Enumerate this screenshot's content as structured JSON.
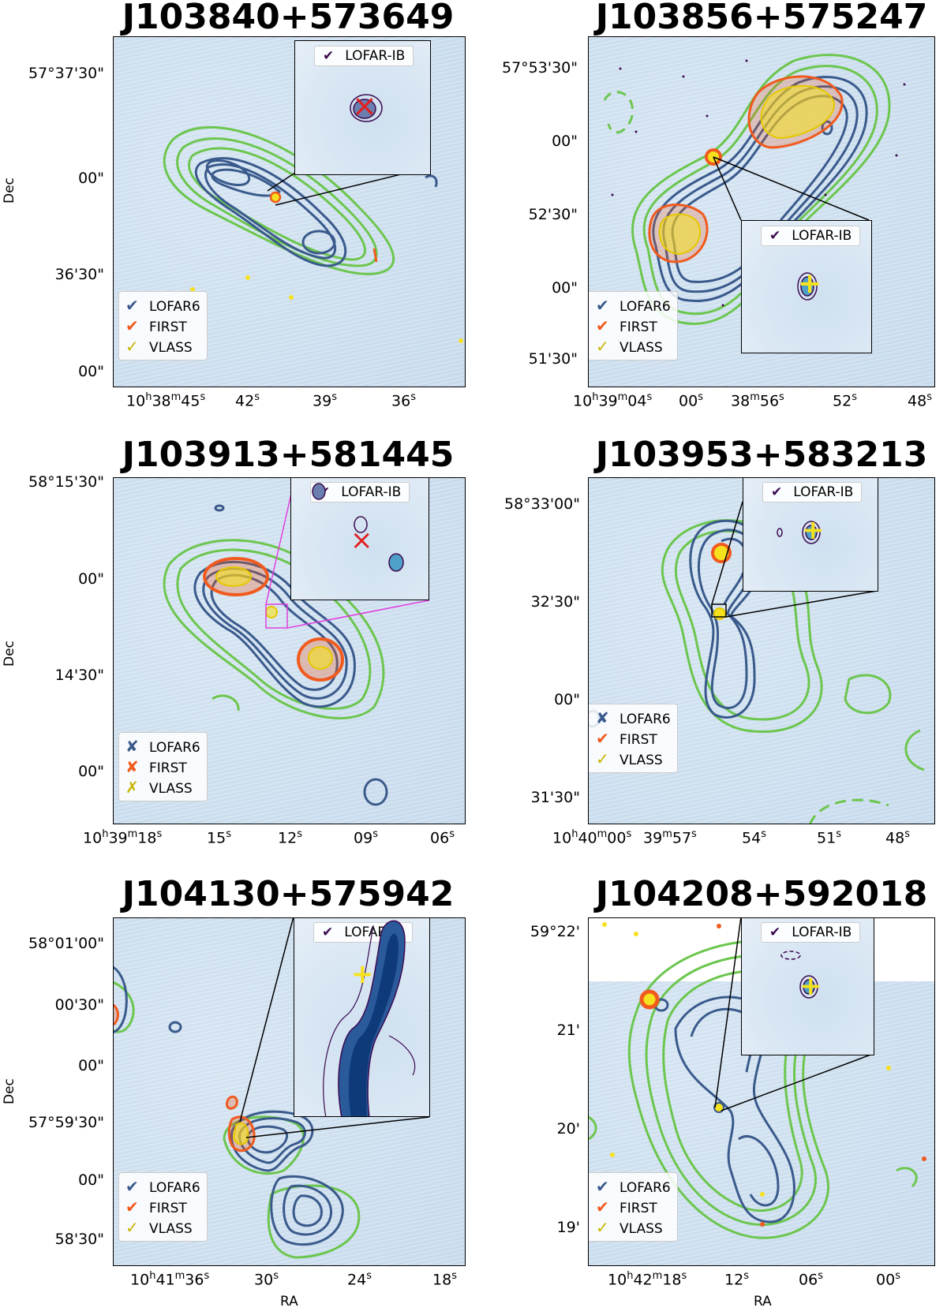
{
  "axis_labels": {
    "x": "RA",
    "y": "Dec"
  },
  "colors": {
    "lofar6": "#3a5a8c",
    "first": "#f05a1e",
    "vlass": "#f5e11e",
    "outer": "#6cc64e",
    "lofar_ib": "#3b0a50",
    "background": "#cfe0ef",
    "magenta_box": "#e040e0"
  },
  "panels": [
    {
      "title": "J103840+573649",
      "dec_ticks": [
        "57°37'30\"",
        "00\"",
        "36'30\"",
        "00\""
      ],
      "ra_ticks": [
        "10h38m45s",
        "42s",
        "39s",
        "36s"
      ],
      "legend": [
        {
          "mark": "✔",
          "label": "LOFAR6",
          "color": "#3a5a8c"
        },
        {
          "mark": "✔",
          "label": "FIRST",
          "color": "#f05a1e"
        },
        {
          "mark": "✓",
          "label": "VLASS",
          "color": "#c8b400"
        }
      ],
      "inset_label": "LOFAR-IB",
      "inset_marker": "×",
      "inset_marker_color": "#e02020",
      "show_y_axis_name": true
    },
    {
      "title": "J103856+575247",
      "dec_ticks": [
        "57°53'30\"",
        "00\"",
        "52'30\"",
        "00\"",
        "51'30\""
      ],
      "ra_ticks": [
        "10h39m04s",
        "00s",
        "38m56s",
        "52s",
        "48s"
      ],
      "legend": [
        {
          "mark": "✔",
          "label": "LOFAR6",
          "color": "#3a5a8c"
        },
        {
          "mark": "✔",
          "label": "FIRST",
          "color": "#f05a1e"
        },
        {
          "mark": "✓",
          "label": "VLASS",
          "color": "#c8b400"
        }
      ],
      "inset_label": "LOFAR-IB",
      "inset_marker": "+",
      "inset_marker_color": "#f5e11e",
      "show_y_axis_name": false
    },
    {
      "title": "J103913+581445",
      "dec_ticks": [
        "58°15'30\"",
        "00\"",
        "14'30\"",
        "00\""
      ],
      "ra_ticks": [
        "10h39m18s",
        "15s",
        "12s",
        "09s",
        "06s"
      ],
      "legend": [
        {
          "mark": "✘",
          "label": "LOFAR6",
          "color": "#3a5a8c"
        },
        {
          "mark": "✘",
          "label": "FIRST",
          "color": "#f05a1e"
        },
        {
          "mark": "✗",
          "label": "VLASS",
          "color": "#c8b400"
        }
      ],
      "inset_label": "LOFAR-IB",
      "inset_marker": "×",
      "inset_marker_color": "#e02020",
      "show_y_axis_name": true
    },
    {
      "title": "J103953+583213",
      "dec_ticks": [
        "58°33'00\"",
        "32'30\"",
        "00\"",
        "31'30\""
      ],
      "ra_ticks": [
        "10h40m00s",
        "39m57s",
        "54s",
        "51s",
        "48s"
      ],
      "legend": [
        {
          "mark": "✘",
          "label": "LOFAR6",
          "color": "#3a5a8c"
        },
        {
          "mark": "✔",
          "label": "FIRST",
          "color": "#f05a1e"
        },
        {
          "mark": "✓",
          "label": "VLASS",
          "color": "#c8b400"
        }
      ],
      "inset_label": "LOFAR-IB",
      "inset_marker": "+",
      "inset_marker_color": "#f5e11e",
      "show_y_axis_name": false
    },
    {
      "title": "J104130+575942",
      "dec_ticks": [
        "58°01'00\"",
        "00'30\"",
        "00\"",
        "57°59'30\"",
        "00\"",
        "58'30\""
      ],
      "ra_ticks": [
        "10h41m36s",
        "30s",
        "24s",
        "18s"
      ],
      "legend": [
        {
          "mark": "✔",
          "label": "LOFAR6",
          "color": "#3a5a8c"
        },
        {
          "mark": "✔",
          "label": "FIRST",
          "color": "#f05a1e"
        },
        {
          "mark": "✓",
          "label": "VLASS",
          "color": "#c8b400"
        }
      ],
      "inset_label": "LOFAR-IB",
      "inset_marker": "+",
      "inset_marker_color": "#f5e11e",
      "show_y_axis_name": true,
      "show_x_axis_name": true
    },
    {
      "title": "J104208+592018",
      "dec_ticks": [
        "59°22'",
        "21'",
        "20'",
        "19'"
      ],
      "ra_ticks": [
        "10h42m18s",
        "12s",
        "06s",
        "00s"
      ],
      "legend": [
        {
          "mark": "✔",
          "label": "LOFAR6",
          "color": "#3a5a8c"
        },
        {
          "mark": "✔",
          "label": "FIRST",
          "color": "#f05a1e"
        },
        {
          "mark": "✓",
          "label": "VLASS",
          "color": "#c8b400"
        }
      ],
      "inset_label": "LOFAR-IB",
      "inset_marker": "+",
      "inset_marker_color": "#f5e11e",
      "show_y_axis_name": false,
      "show_x_axis_name": true
    }
  ]
}
